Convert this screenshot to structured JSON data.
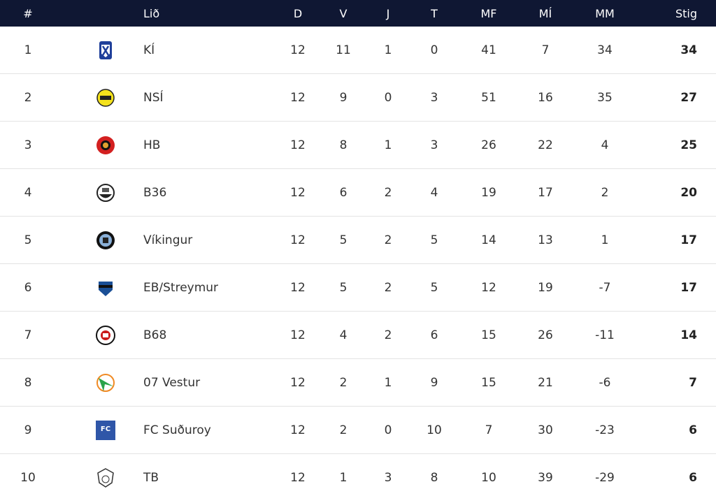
{
  "table": {
    "columns": [
      "#",
      "Lið",
      "D",
      "V",
      "J",
      "T",
      "MF",
      "MÍ",
      "MM",
      "Stig"
    ],
    "rows": [
      [
        1,
        "KÍ",
        12,
        11,
        1,
        0,
        41,
        7,
        34,
        34
      ],
      [
        2,
        "NSÍ",
        12,
        9,
        0,
        3,
        51,
        16,
        35,
        27
      ],
      [
        3,
        "HB",
        12,
        8,
        1,
        3,
        26,
        22,
        4,
        25
      ],
      [
        4,
        "B36",
        12,
        6,
        2,
        4,
        19,
        17,
        2,
        20
      ],
      [
        5,
        "Víkingur",
        12,
        5,
        2,
        5,
        14,
        13,
        1,
        17
      ],
      [
        6,
        "EB/Streymur",
        12,
        5,
        2,
        5,
        12,
        19,
        -7,
        17
      ],
      [
        7,
        "B68",
        12,
        4,
        2,
        6,
        15,
        26,
        -11,
        14
      ],
      [
        8,
        "07 Vestur",
        12,
        2,
        1,
        9,
        15,
        21,
        -6,
        7
      ],
      [
        9,
        "FC Suðuroy",
        12,
        2,
        0,
        10,
        7,
        30,
        -23,
        6
      ],
      [
        10,
        "TB",
        12,
        1,
        3,
        8,
        10,
        39,
        -29,
        6
      ]
    ]
  }
}
